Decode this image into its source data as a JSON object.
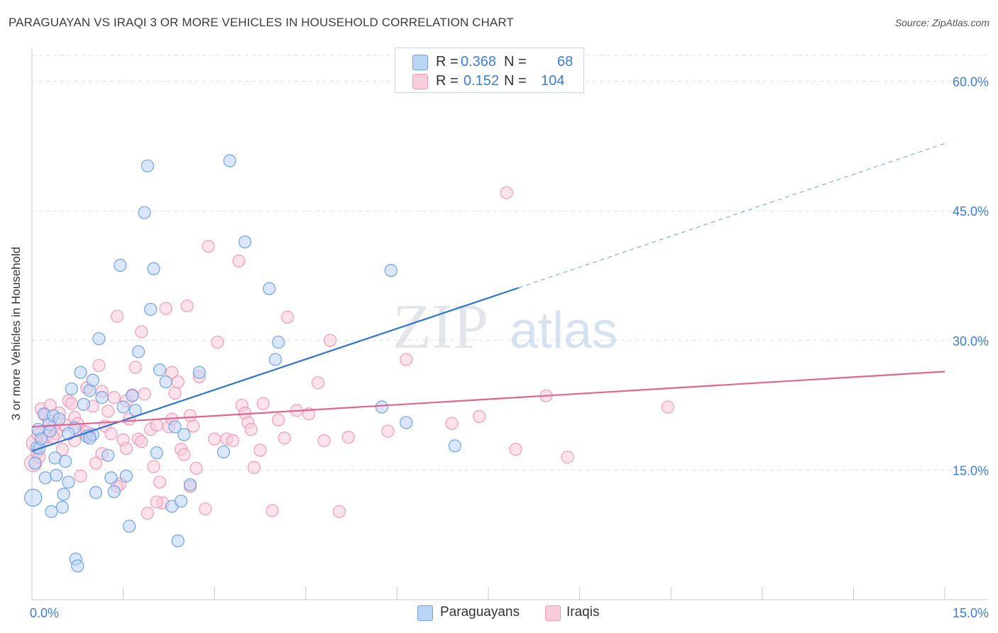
{
  "title": "PARAGUAYAN VS IRAQI 3 OR MORE VEHICLES IN HOUSEHOLD CORRELATION CHART",
  "source": "Source: ZipAtlas.com",
  "watermark": {
    "zip": "ZIP",
    "atlas": "atlas"
  },
  "legend": {
    "rows": [
      {
        "r_label": "R =",
        "r_value": "0.368",
        "n_label": "N =",
        "n_value": "68"
      },
      {
        "r_label": "R =",
        "r_value": "0.152",
        "n_label": "N =",
        "n_value": "104"
      }
    ]
  },
  "chart_data": {
    "type": "scatter",
    "title": "PARAGUAYAN VS IRAQI 3 OR MORE VEHICLES IN HOUSEHOLD CORRELATION CHART",
    "xlabel": "",
    "ylabel": "3 or more Vehicles in Household",
    "xlim": [
      0,
      15
    ],
    "ylim": [
      0,
      63
    ],
    "x_tick_labels": [
      "0.0%",
      "15.0%"
    ],
    "y_ticks": [
      15,
      30,
      45,
      60
    ],
    "y_tick_labels": [
      "15.0%",
      "30.0%",
      "45.0%",
      "60.0%"
    ],
    "grid": "horizontal dashed",
    "legend_position": "top-center",
    "colors": {
      "Paraguayans": "#6fa3e6",
      "Iraqis": "#f19bb8",
      "trend_blue": "#2e74d0",
      "trend_pink": "#e0658f",
      "axis_text": "#3b7dd8"
    },
    "series": [
      {
        "name": "Paraguayans",
        "r": 0.368,
        "n": 68,
        "trend": {
          "x0": 0,
          "y0": 17.2,
          "x1": 8.0,
          "y1": 36.1,
          "dashed_to_x": 15.0,
          "dashed_to_y": 52.8
        },
        "points": [
          [
            0.02,
            11.8,
            1
          ],
          [
            0.05,
            15.8,
            0
          ],
          [
            0.08,
            17.6,
            0
          ],
          [
            0.1,
            19.7,
            0
          ],
          [
            0.12,
            17.5,
            0
          ],
          [
            0.15,
            18.6,
            0
          ],
          [
            0.2,
            21.5,
            0
          ],
          [
            0.22,
            14.1,
            0
          ],
          [
            0.28,
            20.3,
            0
          ],
          [
            0.3,
            19.5,
            0
          ],
          [
            0.32,
            10.2,
            0
          ],
          [
            0.35,
            21.3,
            0
          ],
          [
            0.38,
            16.4,
            0
          ],
          [
            0.4,
            14.4,
            0
          ],
          [
            0.45,
            20.9,
            0
          ],
          [
            0.5,
            10.7,
            0
          ],
          [
            0.52,
            12.2,
            0
          ],
          [
            0.55,
            16.0,
            0
          ],
          [
            0.6,
            13.6,
            0
          ],
          [
            0.65,
            24.4,
            0
          ],
          [
            0.7,
            19.9,
            0
          ],
          [
            0.72,
            4.7,
            0
          ],
          [
            0.75,
            3.9,
            0
          ],
          [
            0.8,
            26.3,
            0
          ],
          [
            0.85,
            22.6,
            0
          ],
          [
            0.9,
            18.9,
            0
          ],
          [
            0.95,
            24.2,
            0
          ],
          [
            1.0,
            19.1,
            0
          ],
          [
            1.05,
            12.4,
            0
          ],
          [
            1.1,
            30.2,
            0
          ],
          [
            1.15,
            23.4,
            0
          ],
          [
            1.25,
            16.7,
            0
          ],
          [
            1.3,
            14.1,
            0
          ],
          [
            1.35,
            12.5,
            0
          ],
          [
            1.45,
            38.7,
            0
          ],
          [
            1.5,
            22.3,
            0
          ],
          [
            1.55,
            14.3,
            0
          ],
          [
            1.6,
            8.5,
            0
          ],
          [
            1.65,
            23.6,
            0
          ],
          [
            1.75,
            28.7,
            0
          ],
          [
            1.85,
            44.8,
            0
          ],
          [
            1.9,
            50.2,
            0
          ],
          [
            1.95,
            33.6,
            0
          ],
          [
            2.0,
            38.3,
            0
          ],
          [
            2.05,
            17.0,
            0
          ],
          [
            2.2,
            25.2,
            0
          ],
          [
            2.3,
            10.8,
            0
          ],
          [
            2.35,
            20.0,
            0
          ],
          [
            2.4,
            6.8,
            0
          ],
          [
            2.45,
            11.4,
            0
          ],
          [
            2.6,
            13.3,
            0
          ],
          [
            2.75,
            26.3,
            0
          ],
          [
            3.25,
            50.8,
            0
          ],
          [
            3.15,
            17.1,
            0
          ],
          [
            3.5,
            41.4,
            0
          ],
          [
            3.9,
            36.0,
            0
          ],
          [
            4.0,
            27.8,
            0
          ],
          [
            4.05,
            29.8,
            0
          ],
          [
            5.75,
            22.3,
            0
          ],
          [
            5.9,
            38.1,
            0
          ],
          [
            6.15,
            20.5,
            0
          ],
          [
            6.95,
            17.8,
            0
          ],
          [
            1.7,
            21.9,
            0
          ],
          [
            2.1,
            26.6,
            0
          ],
          [
            2.5,
            19.1,
            0
          ],
          [
            1.0,
            25.4,
            0
          ],
          [
            0.95,
            18.7,
            0
          ],
          [
            0.6,
            19.2,
            0
          ]
        ]
      },
      {
        "name": "Iraqis",
        "r": 0.152,
        "n": 104,
        "trend": {
          "x0": 0,
          "y0": 20.0,
          "x1": 15.0,
          "y1": 26.4
        },
        "points": [
          [
            0.02,
            15.8,
            1
          ],
          [
            0.05,
            18.1,
            1
          ],
          [
            0.08,
            17.0,
            0
          ],
          [
            0.1,
            19.1,
            0
          ],
          [
            0.12,
            16.5,
            0
          ],
          [
            0.15,
            22.1,
            0
          ],
          [
            0.18,
            18.4,
            0
          ],
          [
            0.2,
            21.4,
            0
          ],
          [
            0.25,
            18.9,
            0
          ],
          [
            0.28,
            20.7,
            0
          ],
          [
            0.3,
            22.5,
            0
          ],
          [
            0.35,
            20.0,
            0
          ],
          [
            0.4,
            19.2,
            0
          ],
          [
            0.45,
            21.6,
            0
          ],
          [
            0.5,
            17.4,
            0
          ],
          [
            0.55,
            20.2,
            0
          ],
          [
            0.6,
            23.0,
            0
          ],
          [
            0.65,
            22.7,
            0
          ],
          [
            0.7,
            21.1,
            0
          ],
          [
            0.75,
            20.4,
            0
          ],
          [
            0.8,
            14.3,
            0
          ],
          [
            0.85,
            19.5,
            0
          ],
          [
            0.9,
            24.5,
            0
          ],
          [
            0.95,
            19.0,
            0
          ],
          [
            1.0,
            22.4,
            0
          ],
          [
            1.05,
            15.8,
            0
          ],
          [
            1.1,
            27.1,
            0
          ],
          [
            1.15,
            24.1,
            0
          ],
          [
            1.2,
            20.1,
            0
          ],
          [
            1.25,
            21.8,
            0
          ],
          [
            1.3,
            19.2,
            0
          ],
          [
            1.35,
            23.4,
            0
          ],
          [
            1.4,
            32.8,
            0
          ],
          [
            1.45,
            13.4,
            0
          ],
          [
            1.5,
            18.5,
            0
          ],
          [
            1.55,
            17.5,
            0
          ],
          [
            1.6,
            20.9,
            0
          ],
          [
            1.65,
            23.7,
            0
          ],
          [
            1.7,
            26.9,
            0
          ],
          [
            1.75,
            18.6,
            0
          ],
          [
            1.8,
            31.0,
            0
          ],
          [
            1.85,
            23.8,
            0
          ],
          [
            1.9,
            10.0,
            0
          ],
          [
            1.95,
            19.7,
            0
          ],
          [
            2.0,
            15.4,
            0
          ],
          [
            2.05,
            20.2,
            0
          ],
          [
            2.1,
            13.6,
            0
          ],
          [
            2.15,
            11.2,
            0
          ],
          [
            2.2,
            33.7,
            0
          ],
          [
            2.25,
            20.0,
            0
          ],
          [
            2.3,
            26.3,
            0
          ],
          [
            2.35,
            23.9,
            0
          ],
          [
            2.4,
            25.2,
            0
          ],
          [
            2.45,
            17.4,
            0
          ],
          [
            2.5,
            16.8,
            0
          ],
          [
            2.55,
            34.0,
            0
          ],
          [
            2.6,
            13.1,
            0
          ],
          [
            2.65,
            20.1,
            0
          ],
          [
            2.7,
            15.2,
            0
          ],
          [
            2.75,
            25.8,
            0
          ],
          [
            2.85,
            10.5,
            0
          ],
          [
            2.9,
            40.9,
            0
          ],
          [
            3.0,
            18.6,
            0
          ],
          [
            3.05,
            29.8,
            0
          ],
          [
            3.2,
            18.6,
            0
          ],
          [
            3.4,
            39.2,
            0
          ],
          [
            3.45,
            22.5,
            0
          ],
          [
            3.5,
            21.6,
            0
          ],
          [
            3.55,
            20.5,
            0
          ],
          [
            3.6,
            19.7,
            0
          ],
          [
            3.65,
            15.3,
            0
          ],
          [
            3.75,
            17.3,
            0
          ],
          [
            3.95,
            10.3,
            0
          ],
          [
            4.15,
            18.7,
            0
          ],
          [
            4.2,
            32.7,
            0
          ],
          [
            4.35,
            21.9,
            0
          ],
          [
            4.55,
            21.5,
            0
          ],
          [
            4.7,
            25.1,
            0
          ],
          [
            4.8,
            18.4,
            0
          ],
          [
            4.9,
            30.0,
            0
          ],
          [
            5.05,
            10.2,
            0
          ],
          [
            5.2,
            18.8,
            0
          ],
          [
            5.85,
            19.5,
            0
          ],
          [
            6.15,
            27.8,
            0
          ],
          [
            6.9,
            20.4,
            0
          ],
          [
            7.35,
            21.2,
            0
          ],
          [
            7.8,
            47.1,
            0
          ],
          [
            7.95,
            17.4,
            0
          ],
          [
            8.45,
            23.6,
            0
          ],
          [
            8.8,
            16.5,
            0
          ],
          [
            10.45,
            22.3,
            0
          ],
          [
            3.8,
            22.7,
            0
          ],
          [
            1.4,
            13.1,
            0
          ],
          [
            2.05,
            11.3,
            0
          ],
          [
            0.9,
            19.4,
            0
          ],
          [
            1.15,
            16.9,
            0
          ],
          [
            1.55,
            23.0,
            0
          ],
          [
            0.7,
            18.4,
            0
          ],
          [
            2.3,
            20.9,
            0
          ],
          [
            1.8,
            18.3,
            0
          ],
          [
            3.3,
            18.4,
            0
          ],
          [
            2.6,
            21.3,
            0
          ],
          [
            4.05,
            20.8,
            0
          ],
          [
            0.35,
            18.8,
            0
          ]
        ]
      }
    ]
  },
  "bottom_legend": [
    "Paraguayans",
    "Iraqis"
  ]
}
